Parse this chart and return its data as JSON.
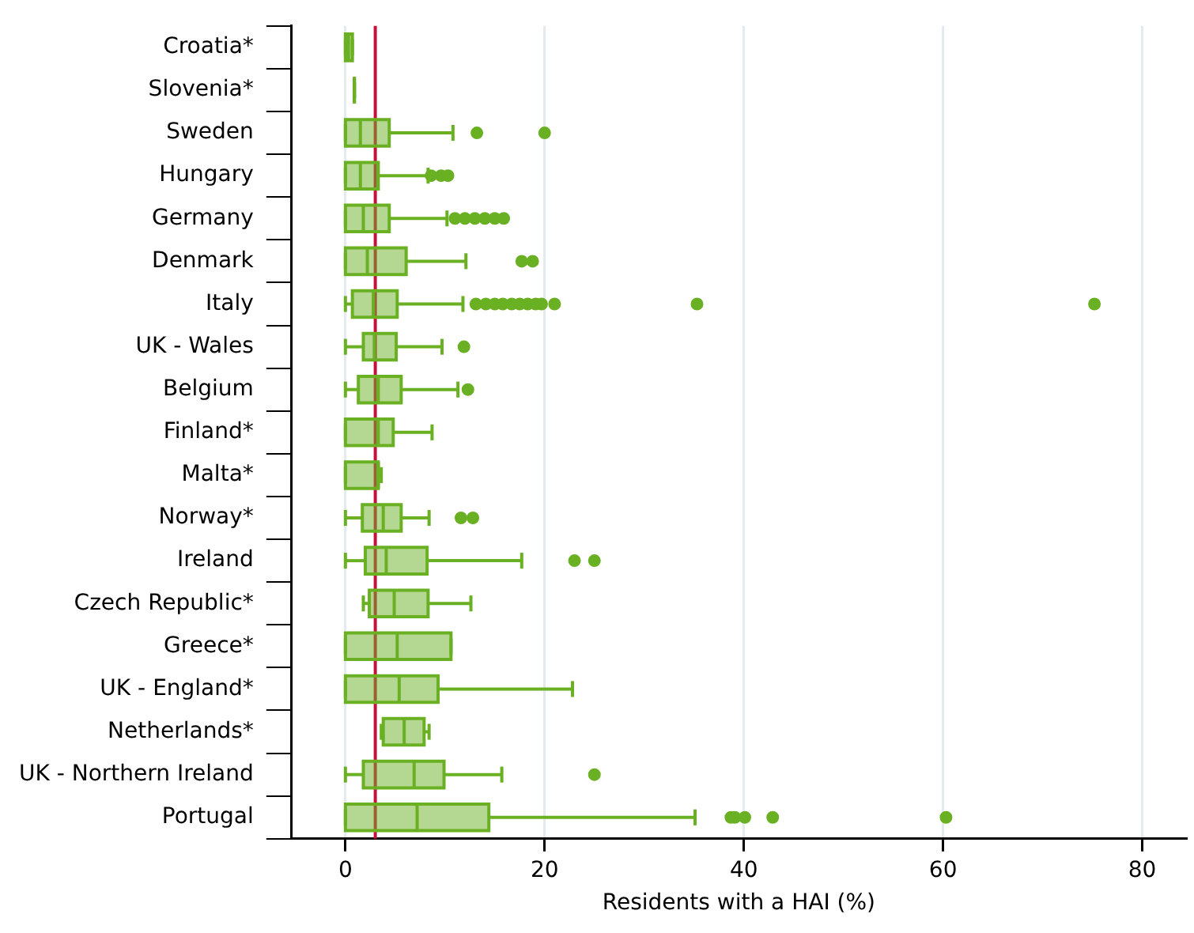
{
  "chart_data": {
    "type": "box",
    "orientation": "horizontal",
    "xlabel": "Residents with a HAI (%)",
    "color": "#6ab023",
    "categories": [
      "Croatia*",
      "Slovenia*",
      "Sweden",
      "Hungary",
      "Germany",
      "Denmark",
      "Italy",
      "UK - Wales",
      "Belgium",
      "Finland*",
      "Malta*",
      "Norway*",
      "Ireland",
      "Czech Republic*",
      "Greece*",
      "UK - England*",
      "Netherlands*",
      "UK - Northern Ireland",
      "Portugal"
    ],
    "boxes": [
      {
        "low": 0,
        "q1": 0,
        "median": 0.3,
        "q3": 0.7,
        "high": 0.7
      },
      {
        "low": 0.9,
        "q1": 0.9,
        "median": 0.9,
        "q3": 0.9,
        "high": 0.9
      },
      {
        "low": 0,
        "q1": 0,
        "median": 1.5,
        "q3": 4.4,
        "high": 10.8,
        "outliers": [
          13.2,
          20.0
        ]
      },
      {
        "low": 0,
        "q1": 0,
        "median": 1.5,
        "q3": 3.3,
        "high": 8.3,
        "outliers": [
          8.6,
          9.6,
          10.3
        ]
      },
      {
        "low": 0,
        "q1": 0,
        "median": 1.8,
        "q3": 4.4,
        "high": 10.2,
        "outliers": [
          11.0,
          12.0,
          13.0,
          14.0,
          15.0,
          15.9
        ]
      },
      {
        "low": 0,
        "q1": 0,
        "median": 2.2,
        "q3": 6.1,
        "high": 12.1,
        "outliers": [
          17.7,
          18.8
        ]
      },
      {
        "low": 0,
        "q1": 0.7,
        "median": 2.8,
        "q3": 5.2,
        "high": 11.8,
        "outliers": [
          13.1,
          14.1,
          15.0,
          15.8,
          16.7,
          17.5,
          18.3,
          19.1,
          19.7,
          21.0,
          35.3,
          75.2
        ]
      },
      {
        "low": 0,
        "q1": 1.8,
        "median": 2.9,
        "q3": 5.1,
        "high": 9.7,
        "outliers": [
          11.9
        ]
      },
      {
        "low": 0,
        "q1": 1.3,
        "median": 3.3,
        "q3": 5.6,
        "high": 11.3,
        "outliers": [
          12.3
        ]
      },
      {
        "low": 0,
        "q1": 0,
        "median": 3.3,
        "q3": 4.8,
        "high": 8.7
      },
      {
        "low": 0,
        "q1": 0,
        "median": 3.3,
        "q3": 3.3,
        "high": 3.6
      },
      {
        "low": 0,
        "q1": 1.7,
        "median": 3.8,
        "q3": 5.6,
        "high": 8.4,
        "outliers": [
          11.6,
          12.8
        ]
      },
      {
        "low": 0,
        "q1": 2.0,
        "median": 4.1,
        "q3": 8.2,
        "high": 17.7,
        "outliers": [
          23.0,
          25.0
        ]
      },
      {
        "low": 1.8,
        "q1": 2.4,
        "median": 4.9,
        "q3": 8.3,
        "high": 12.6
      },
      {
        "low": 0,
        "q1": 0,
        "median": 5.2,
        "q3": 10.6,
        "high": 10.6
      },
      {
        "low": 0,
        "q1": 0,
        "median": 5.4,
        "q3": 9.3,
        "high": 22.8
      },
      {
        "low": 3.6,
        "q1": 3.8,
        "median": 5.9,
        "q3": 7.9,
        "high": 8.4
      },
      {
        "low": 0,
        "q1": 1.8,
        "median": 6.9,
        "q3": 9.9,
        "high": 15.7,
        "outliers": [
          25.0
        ]
      },
      {
        "low": 0,
        "q1": 0,
        "median": 7.2,
        "q3": 14.4,
        "high": 35.1,
        "outliers": [
          38.7,
          39.1,
          40.1,
          42.9,
          60.3
        ]
      }
    ],
    "xlim": [
      -5.4,
      84.4
    ],
    "xticks": [
      0,
      20,
      40,
      60,
      80
    ],
    "grid": "x",
    "ref_lines": [
      {
        "axis": "x",
        "value": 3,
        "color": "#c8103c"
      }
    ]
  }
}
